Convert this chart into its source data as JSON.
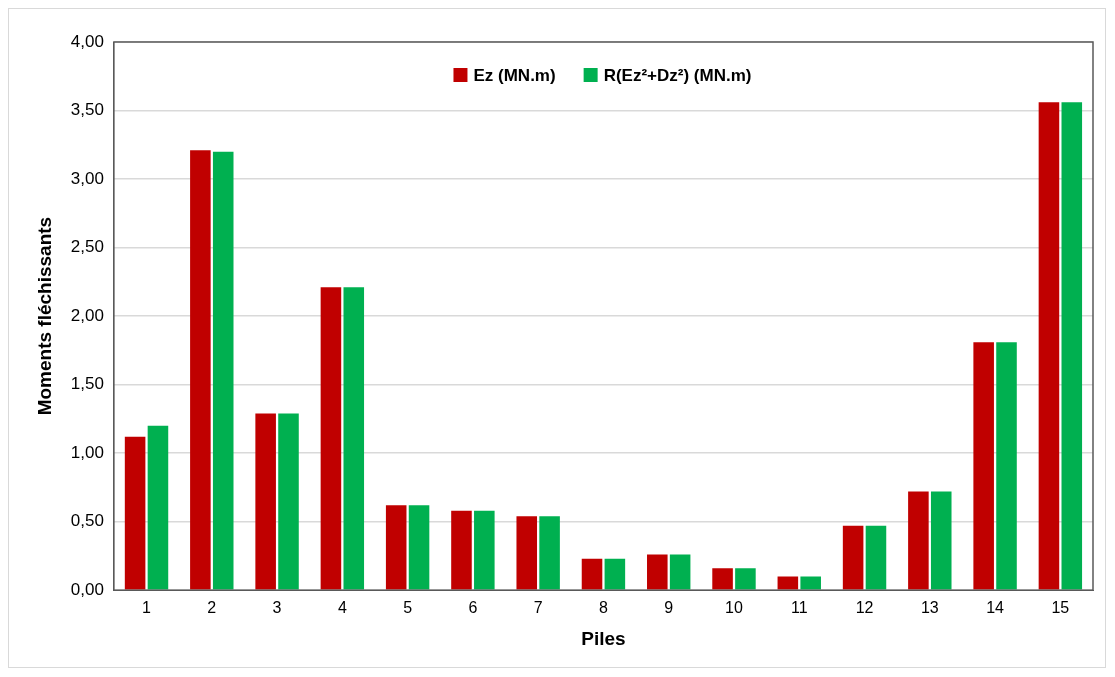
{
  "chart_data": {
    "type": "bar",
    "xlabel": "Piles",
    "ylabel": "Moments fléchissants",
    "categories": [
      "1",
      "2",
      "3",
      "4",
      "5",
      "6",
      "7",
      "8",
      "9",
      "10",
      "11",
      "12",
      "13",
      "14",
      "15"
    ],
    "series": [
      {
        "name": "Ez (MN.m)",
        "color": "#c00000",
        "values": [
          1.12,
          3.21,
          1.29,
          2.21,
          0.62,
          0.58,
          0.54,
          0.23,
          0.26,
          0.16,
          0.1,
          0.47,
          0.72,
          1.81,
          3.56
        ]
      },
      {
        "name": "R(Ez²+Dz²) (MN.m)",
        "color": "#00b050",
        "values": [
          1.2,
          3.2,
          1.29,
          2.21,
          0.62,
          0.58,
          0.54,
          0.23,
          0.26,
          0.16,
          0.1,
          0.47,
          0.72,
          1.81,
          3.56
        ]
      }
    ],
    "ylim": [
      0,
      4
    ],
    "yticks": [
      {
        "value": 0,
        "label": "0,00"
      },
      {
        "value": 0.5,
        "label": "0,50"
      },
      {
        "value": 1,
        "label": "1,00"
      },
      {
        "value": 1.5,
        "label": "1,50"
      },
      {
        "value": 2,
        "label": "2,00"
      },
      {
        "value": 2.5,
        "label": "2,50"
      },
      {
        "value": 3,
        "label": "3,00"
      },
      {
        "value": 3.5,
        "label": "3,50"
      },
      {
        "value": 4,
        "label": "4,00"
      }
    ],
    "grid": "y",
    "legend": "top"
  }
}
